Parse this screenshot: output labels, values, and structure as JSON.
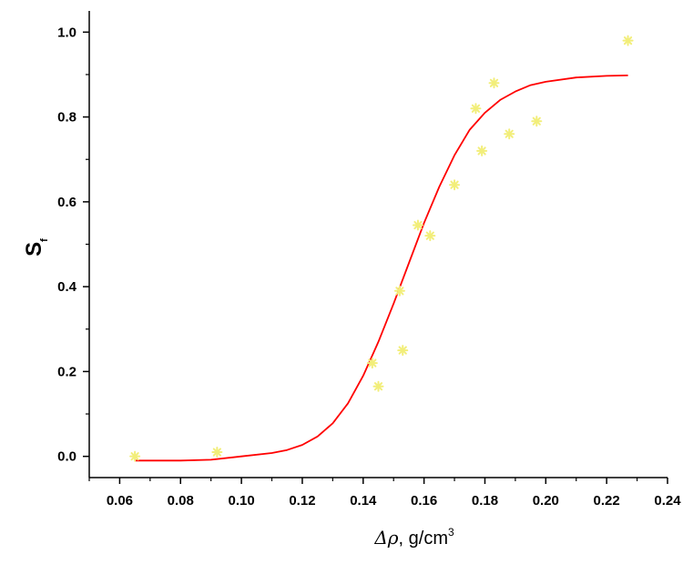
{
  "chart_data": {
    "type": "scatter",
    "title": "",
    "xlabel": "Δρ, g/cm³",
    "xlabel_parts": {
      "symbol": "Δρ",
      "unit": ", g/cm",
      "sup": "3"
    },
    "ylabel": "S_f",
    "ylabel_parts": {
      "base": "S",
      "sub": "f"
    },
    "xlim": [
      0.05,
      0.24
    ],
    "ylim": [
      -0.05,
      1.05
    ],
    "x_ticks": [
      0.06,
      0.08,
      0.1,
      0.12,
      0.14,
      0.16,
      0.18,
      0.2,
      0.22,
      0.24
    ],
    "x_tick_labels": [
      "0.06",
      "0.08",
      "0.10",
      "0.12",
      "0.14",
      "0.16",
      "0.18",
      "0.20",
      "0.22",
      "0.24"
    ],
    "y_ticks": [
      0.0,
      0.2,
      0.4,
      0.6,
      0.8,
      1.0
    ],
    "y_tick_labels": [
      "0.0",
      "0.2",
      "0.4",
      "0.6",
      "0.8",
      "1.0"
    ],
    "grid": false,
    "legend": "none",
    "series": [
      {
        "kind": "scatter",
        "marker": "asterisk",
        "color": "#f2ee7a",
        "x": [
          0.065,
          0.092,
          0.143,
          0.145,
          0.152,
          0.153,
          0.158,
          0.162,
          0.17,
          0.177,
          0.179,
          0.183,
          0.188,
          0.197,
          0.227
        ],
        "y": [
          0.0,
          0.01,
          0.22,
          0.165,
          0.39,
          0.25,
          0.545,
          0.52,
          0.64,
          0.82,
          0.72,
          0.88,
          0.76,
          0.79,
          0.98
        ]
      },
      {
        "kind": "line",
        "color": "#ff0000",
        "x": [
          0.065,
          0.08,
          0.09,
          0.1,
          0.11,
          0.115,
          0.12,
          0.125,
          0.13,
          0.135,
          0.14,
          0.145,
          0.15,
          0.155,
          0.16,
          0.165,
          0.17,
          0.175,
          0.18,
          0.185,
          0.19,
          0.195,
          0.2,
          0.21,
          0.22,
          0.227
        ],
        "y": [
          -0.01,
          -0.01,
          -0.008,
          0.0,
          0.008,
          0.015,
          0.027,
          0.047,
          0.078,
          0.125,
          0.19,
          0.27,
          0.36,
          0.455,
          0.55,
          0.635,
          0.71,
          0.77,
          0.81,
          0.84,
          0.86,
          0.875,
          0.883,
          0.893,
          0.897,
          0.898
        ]
      }
    ]
  }
}
